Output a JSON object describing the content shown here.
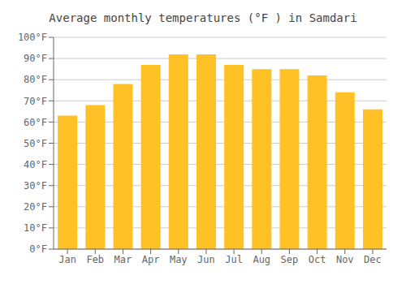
{
  "chart_data": {
    "type": "bar",
    "title": "Average monthly temperatures (°F ) in Samdari",
    "categories": [
      "Jan",
      "Feb",
      "Mar",
      "Apr",
      "May",
      "Jun",
      "Jul",
      "Aug",
      "Sep",
      "Oct",
      "Nov",
      "Dec"
    ],
    "values": [
      63,
      68,
      78,
      87,
      92,
      92,
      87,
      85,
      85,
      82,
      74,
      66
    ],
    "color": "#FFC125",
    "ylim": [
      0,
      100
    ],
    "yticks": [
      {
        "value": 0,
        "label": "0°F"
      },
      {
        "value": 10,
        "label": "10°F"
      },
      {
        "value": 20,
        "label": "20°F"
      },
      {
        "value": 30,
        "label": "30°F"
      },
      {
        "value": 40,
        "label": "40°F"
      },
      {
        "value": 50,
        "label": "50°F"
      },
      {
        "value": 60,
        "label": "60°F"
      },
      {
        "value": 70,
        "label": "70°F"
      },
      {
        "value": 80,
        "label": "80°F"
      },
      {
        "value": 90,
        "label": "90°F"
      },
      {
        "value": 100,
        "label": "100°F"
      }
    ],
    "grid": true
  }
}
